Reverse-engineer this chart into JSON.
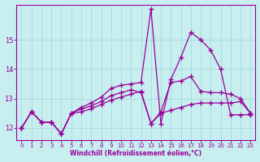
{
  "xlabel": "Windchill (Refroidissement éolien,°C)",
  "background_color": "#c8eef0",
  "grid_color": "#aadddd",
  "line_color": "#990099",
  "xlim": [
    -0.5,
    23.5
  ],
  "ylim": [
    11.6,
    16.2
  ],
  "yticks": [
    12,
    13,
    14,
    15
  ],
  "xticks": [
    0,
    1,
    2,
    3,
    4,
    5,
    6,
    7,
    8,
    9,
    10,
    11,
    12,
    13,
    14,
    15,
    16,
    17,
    18,
    19,
    20,
    21,
    22,
    23
  ],
  "series1_x": [
    0,
    1,
    2,
    3,
    4,
    5,
    6,
    7,
    8,
    9,
    10,
    11,
    12,
    13,
    14,
    15,
    16,
    17,
    18,
    19,
    20,
    21,
    22,
    23
  ],
  "series1_y": [
    12.0,
    12.55,
    12.2,
    12.2,
    11.8,
    12.5,
    12.55,
    12.65,
    12.8,
    12.95,
    13.05,
    13.15,
    13.25,
    12.15,
    12.5,
    12.6,
    12.7,
    12.8,
    12.85,
    12.85,
    12.85,
    12.85,
    12.9,
    12.5
  ],
  "series2_x": [
    0,
    1,
    2,
    3,
    4,
    5,
    6,
    7,
    8,
    9,
    10,
    11,
    12,
    13,
    14,
    15,
    16,
    17,
    18,
    19,
    20,
    21,
    22,
    23
  ],
  "series2_y": [
    12.0,
    12.55,
    12.2,
    12.2,
    11.8,
    12.5,
    12.7,
    12.85,
    13.05,
    13.35,
    13.45,
    13.5,
    13.55,
    16.05,
    12.15,
    13.65,
    14.4,
    15.25,
    15.0,
    14.65,
    14.0,
    12.45,
    12.45,
    12.45
  ],
  "series3_x": [
    0,
    1,
    2,
    3,
    4,
    5,
    6,
    7,
    8,
    9,
    10,
    11,
    12,
    13,
    14,
    15,
    16,
    17,
    18,
    19,
    20,
    21,
    22,
    23
  ],
  "series3_y": [
    12.0,
    12.55,
    12.2,
    12.2,
    11.8,
    12.5,
    12.65,
    12.75,
    12.9,
    13.1,
    13.2,
    13.3,
    13.2,
    12.15,
    12.55,
    13.55,
    13.6,
    13.75,
    13.25,
    13.2,
    13.2,
    13.15,
    13.0,
    12.5
  ]
}
